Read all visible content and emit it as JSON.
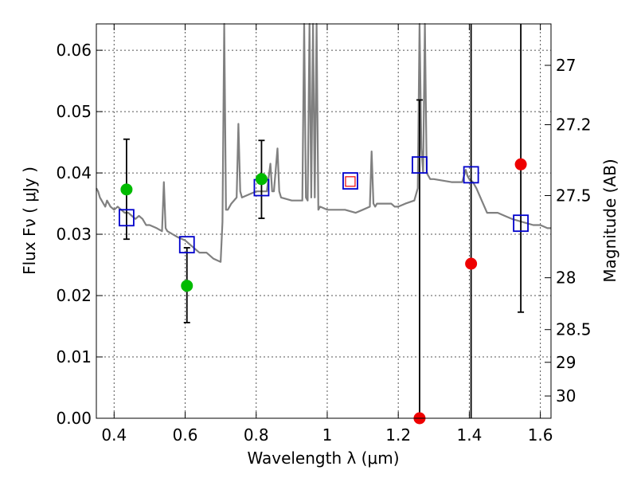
{
  "chart_data": {
    "type": "scatter",
    "title": "",
    "xlabel": "Wavelength  λ (μm)",
    "ylabel": "Flux  Fν  ( μJy )",
    "ylabel_right": "Magnitude (AB)",
    "xlim": [
      0.35,
      1.63
    ],
    "ylim": [
      0.0,
      0.0643
    ],
    "grid": true,
    "x_ticks": [
      {
        "value": 0.4,
        "label": "0.4"
      },
      {
        "value": 0.6,
        "label": "0.6"
      },
      {
        "value": 0.8,
        "label": "0.8"
      },
      {
        "value": 1.0,
        "label": "1"
      },
      {
        "value": 1.2,
        "label": "1.2"
      },
      {
        "value": 1.4,
        "label": "1.4"
      },
      {
        "value": 1.6,
        "label": "1.6"
      }
    ],
    "y_ticks": [
      {
        "value": 0.0,
        "label": "0.00"
      },
      {
        "value": 0.01,
        "label": "0.01"
      },
      {
        "value": 0.02,
        "label": "0.02"
      },
      {
        "value": 0.03,
        "label": "0.03"
      },
      {
        "value": 0.04,
        "label": "0.04"
      },
      {
        "value": 0.05,
        "label": "0.05"
      },
      {
        "value": 0.06,
        "label": "0.06"
      }
    ],
    "right_ticks": [
      {
        "mag": 27,
        "label": "27"
      },
      {
        "mag": 27.2,
        "label": "27.2"
      },
      {
        "mag": 27.5,
        "label": "27.5"
      },
      {
        "mag": 28,
        "label": "28"
      },
      {
        "mag": 28.5,
        "label": "28.5"
      },
      {
        "mag": 29,
        "label": "29"
      },
      {
        "mag": 30,
        "label": "30"
      }
    ],
    "colors": {
      "model": "#808080",
      "model_box": "#0000cc",
      "green_point": "#00bb00",
      "red_point": "#ee0000",
      "errorbar": "#000000",
      "grid": "#555555"
    },
    "model_spectrum": {
      "x": [
        0.35,
        0.355,
        0.36,
        0.37,
        0.375,
        0.38,
        0.39,
        0.4,
        0.41,
        0.42,
        0.43,
        0.44,
        0.45,
        0.46,
        0.47,
        0.48,
        0.49,
        0.5,
        0.52,
        0.535,
        0.54,
        0.545,
        0.55,
        0.58,
        0.6,
        0.62,
        0.64,
        0.66,
        0.68,
        0.7,
        0.705,
        0.71,
        0.715,
        0.72,
        0.73,
        0.745,
        0.75,
        0.755,
        0.76,
        0.78,
        0.8,
        0.83,
        0.84,
        0.845,
        0.85,
        0.86,
        0.865,
        0.87,
        0.9,
        0.93,
        0.935,
        0.94,
        0.945,
        0.95,
        0.955,
        0.96,
        0.965,
        0.97,
        0.975,
        0.98,
        1.0,
        1.05,
        1.08,
        1.1,
        1.12,
        1.125,
        1.13,
        1.135,
        1.14,
        1.18,
        1.19,
        1.2,
        1.22,
        1.245,
        1.255,
        1.26,
        1.265,
        1.27,
        1.275,
        1.28,
        1.285,
        1.29,
        1.3,
        1.35,
        1.38,
        1.39,
        1.395,
        1.4,
        1.41,
        1.42,
        1.45,
        1.48,
        1.5,
        1.52,
        1.55,
        1.58,
        1.6,
        1.62,
        1.63
      ],
      "y": [
        0.0375,
        0.037,
        0.036,
        0.035,
        0.0345,
        0.0355,
        0.0345,
        0.034,
        0.0345,
        0.034,
        0.0335,
        0.0335,
        0.033,
        0.0325,
        0.033,
        0.0325,
        0.0315,
        0.0315,
        0.031,
        0.0305,
        0.0385,
        0.031,
        0.0305,
        0.0295,
        0.029,
        0.028,
        0.027,
        0.027,
        0.026,
        0.0255,
        0.032,
        0.0643,
        0.034,
        0.034,
        0.035,
        0.036,
        0.048,
        0.037,
        0.036,
        0.0365,
        0.037,
        0.037,
        0.0415,
        0.037,
        0.037,
        0.044,
        0.037,
        0.036,
        0.0355,
        0.0355,
        0.0643,
        0.036,
        0.0355,
        0.0643,
        0.036,
        0.0643,
        0.036,
        0.0643,
        0.034,
        0.0345,
        0.034,
        0.034,
        0.0335,
        0.034,
        0.0345,
        0.0435,
        0.035,
        0.0345,
        0.035,
        0.035,
        0.0345,
        0.0345,
        0.035,
        0.0355,
        0.0375,
        0.0643,
        0.044,
        0.04,
        0.0643,
        0.04,
        0.0395,
        0.039,
        0.039,
        0.0385,
        0.0385,
        0.0405,
        0.0395,
        0.039,
        0.0385,
        0.0375,
        0.0335,
        0.0335,
        0.033,
        0.0325,
        0.032,
        0.0315,
        0.0315,
        0.031,
        0.031
      ]
    },
    "series": [
      {
        "marker": "square",
        "x": [
          0.435,
          0.605,
          0.815,
          1.065,
          1.26,
          1.405,
          1.545
        ],
        "y": [
          0.0327,
          0.0283,
          0.0376,
          0.0387,
          0.0413,
          0.0397,
          0.0318
        ]
      },
      {
        "marker": "circle",
        "color": "green",
        "x": [
          0.435,
          0.605,
          0.815
        ],
        "y": [
          0.0373,
          0.0216,
          0.039
        ],
        "yerr_low": [
          0.0292,
          0.0156,
          0.0326
        ],
        "yerr_high": [
          0.0455,
          0.0278,
          0.0453
        ]
      },
      {
        "marker": "circle",
        "color": "red",
        "x": [
          1.065,
          1.26,
          1.405,
          1.545
        ],
        "y": [
          0.0386,
          0.0,
          0.0252,
          0.0414
        ],
        "yerr_low": [
          null,
          0.0,
          0.0,
          0.0173
        ],
        "yerr_high": [
          null,
          0.0519,
          0.0643,
          0.0643
        ]
      }
    ]
  }
}
